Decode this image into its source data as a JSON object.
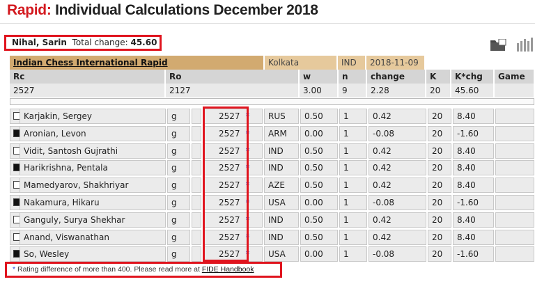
{
  "page_title": {
    "prefix": "Rapid:",
    "main": " Individual Calculations December 2018"
  },
  "player": {
    "name": "Nihal, Sarin",
    "total_change_label": "Total change:",
    "total_change_value": "45.60"
  },
  "toolbar": {
    "folder_icon": "folder-icon",
    "chart_icon": "bar-chart-icon"
  },
  "event": {
    "name": "Indian Chess International Rapid",
    "city": "Kolkata",
    "country": "IND",
    "date": "2018-11-09"
  },
  "summary": {
    "headers": {
      "rc": "Rc",
      "ro": "Ro",
      "w": "w",
      "n": "n",
      "change": "change",
      "k": "K",
      "kchg": "K*chg",
      "game": "Game"
    },
    "values": {
      "rc": "2527",
      "ro": "2127",
      "w": "3.00",
      "n": "9",
      "change": "2.28",
      "k": "20",
      "kchg": "45.60"
    }
  },
  "games": [
    {
      "color": "white",
      "opponent": "Karjakin, Sergey",
      "title": "g",
      "rating": "2527",
      "star": "*",
      "fed": "RUS",
      "w": "0.50",
      "n": "1",
      "change": "0.42",
      "k": "20",
      "kchg": "8.40"
    },
    {
      "color": "black",
      "opponent": "Aronian, Levon",
      "title": "g",
      "rating": "2527",
      "star": "*",
      "fed": "ARM",
      "w": "0.00",
      "n": "1",
      "change": "-0.08",
      "k": "20",
      "kchg": "-1.60"
    },
    {
      "color": "white",
      "opponent": "Vidit, Santosh Gujrathi",
      "title": "g",
      "rating": "2527",
      "star": "*",
      "fed": "IND",
      "w": "0.50",
      "n": "1",
      "change": "0.42",
      "k": "20",
      "kchg": "8.40"
    },
    {
      "color": "black",
      "opponent": "Harikrishna, Pentala",
      "title": "g",
      "rating": "2527",
      "star": "*",
      "fed": "IND",
      "w": "0.50",
      "n": "1",
      "change": "0.42",
      "k": "20",
      "kchg": "8.40"
    },
    {
      "color": "white",
      "opponent": "Mamedyarov, Shakhriyar",
      "title": "g",
      "rating": "2527",
      "star": "*",
      "fed": "AZE",
      "w": "0.50",
      "n": "1",
      "change": "0.42",
      "k": "20",
      "kchg": "8.40"
    },
    {
      "color": "black",
      "opponent": "Nakamura, Hikaru",
      "title": "g",
      "rating": "2527",
      "star": "*",
      "fed": "USA",
      "w": "0.00",
      "n": "1",
      "change": "-0.08",
      "k": "20",
      "kchg": "-1.60"
    },
    {
      "color": "white",
      "opponent": "Ganguly, Surya Shekhar",
      "title": "g",
      "rating": "2527",
      "star": "*",
      "fed": "IND",
      "w": "0.50",
      "n": "1",
      "change": "0.42",
      "k": "20",
      "kchg": "8.40"
    },
    {
      "color": "white",
      "opponent": "Anand, Viswanathan",
      "title": "g",
      "rating": "2527",
      "star": "*",
      "fed": "IND",
      "w": "0.50",
      "n": "1",
      "change": "0.42",
      "k": "20",
      "kchg": "8.40"
    },
    {
      "color": "black",
      "opponent": "So, Wesley",
      "title": "g",
      "rating": "2527",
      "star": "*",
      "fed": "USA",
      "w": "0.00",
      "n": "1",
      "change": "-0.08",
      "k": "20",
      "kchg": "-1.60"
    }
  ],
  "footnote": {
    "star": "*",
    "text": " Rating difference of more than 400. Please read more at ",
    "link": "FIDE Handbook"
  }
}
